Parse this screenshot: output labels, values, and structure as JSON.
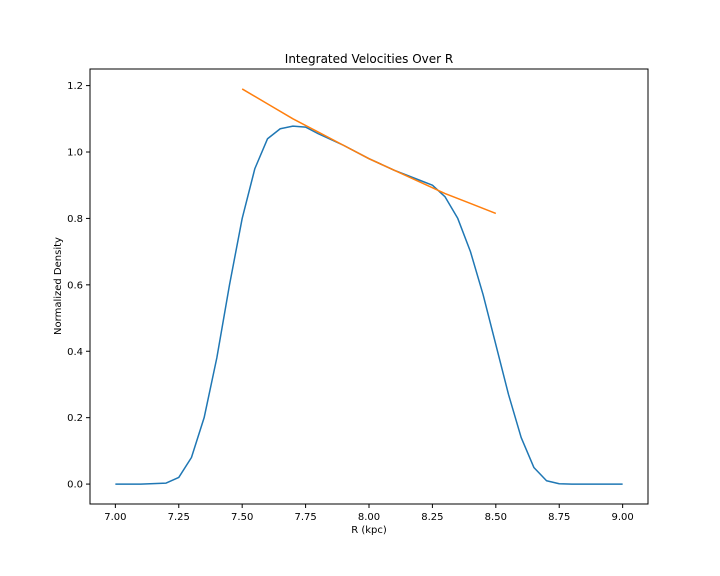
{
  "chart_data": {
    "type": "line",
    "title": "Integrated Velocities Over R",
    "xlabel": "R (kpc)",
    "ylabel": "Normalized Density",
    "xlim": [
      6.9,
      9.1
    ],
    "ylim": [
      -0.06,
      1.25
    ],
    "x_ticks": [
      "7.00",
      "7.25",
      "7.50",
      "7.75",
      "8.00",
      "8.25",
      "8.50",
      "8.75",
      "9.00"
    ],
    "x_tick_values": [
      7.0,
      7.25,
      7.5,
      7.75,
      8.0,
      8.25,
      8.5,
      8.75,
      9.0
    ],
    "y_ticks": [
      "0.0",
      "0.2",
      "0.4",
      "0.6",
      "0.8",
      "1.0",
      "1.2"
    ],
    "y_tick_values": [
      0.0,
      0.2,
      0.4,
      0.6,
      0.8,
      1.0,
      1.2
    ],
    "grid": false,
    "series": [
      {
        "color": "#1f77b4",
        "x": [
          7.0,
          7.1,
          7.2,
          7.25,
          7.3,
          7.35,
          7.4,
          7.45,
          7.5,
          7.55,
          7.6,
          7.65,
          7.7,
          7.75,
          7.8,
          7.9,
          8.0,
          8.1,
          8.2,
          8.25,
          8.3,
          8.35,
          8.4,
          8.45,
          8.5,
          8.55,
          8.6,
          8.65,
          8.7,
          8.75,
          8.8,
          8.9,
          9.0
        ],
        "y": [
          0.0,
          0.0,
          0.003,
          0.02,
          0.08,
          0.2,
          0.38,
          0.6,
          0.8,
          0.95,
          1.04,
          1.07,
          1.078,
          1.075,
          1.055,
          1.02,
          0.98,
          0.945,
          0.915,
          0.9,
          0.865,
          0.8,
          0.7,
          0.57,
          0.42,
          0.27,
          0.14,
          0.05,
          0.01,
          0.001,
          0.0,
          0.0,
          0.0
        ]
      },
      {
        "color": "#ff7f0e",
        "x": [
          7.5,
          7.6,
          7.7,
          7.8,
          7.9,
          8.0,
          8.1,
          8.2,
          8.3,
          8.4,
          8.5
        ],
        "y": [
          1.19,
          1.145,
          1.1,
          1.06,
          1.02,
          0.98,
          0.945,
          0.91,
          0.875,
          0.845,
          0.815
        ]
      }
    ]
  }
}
